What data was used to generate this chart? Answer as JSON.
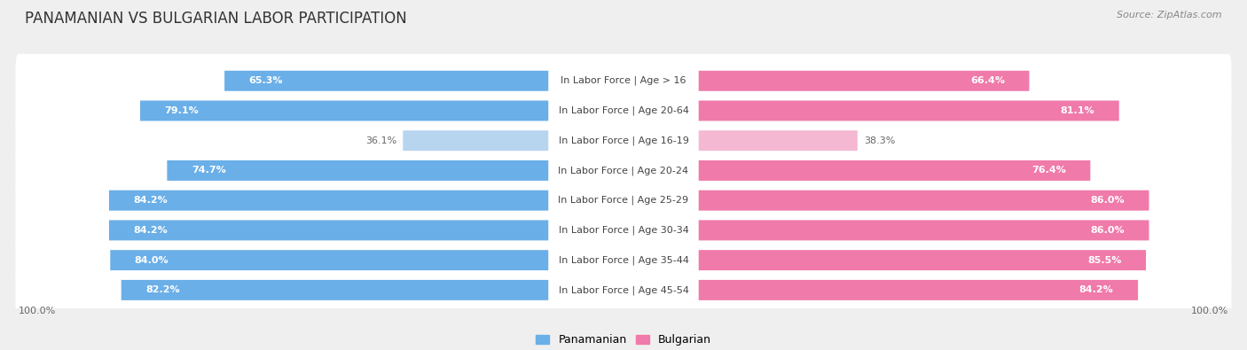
{
  "title": "PANAMANIAN VS BULGARIAN LABOR PARTICIPATION",
  "source": "Source: ZipAtlas.com",
  "categories": [
    "In Labor Force | Age > 16",
    "In Labor Force | Age 20-64",
    "In Labor Force | Age 16-19",
    "In Labor Force | Age 20-24",
    "In Labor Force | Age 25-29",
    "In Labor Force | Age 30-34",
    "In Labor Force | Age 35-44",
    "In Labor Force | Age 45-54"
  ],
  "panamanian": [
    65.3,
    79.1,
    36.1,
    74.7,
    84.2,
    84.2,
    84.0,
    82.2
  ],
  "bulgarian": [
    66.4,
    81.1,
    38.3,
    76.4,
    86.0,
    86.0,
    85.5,
    84.2
  ],
  "pan_color_strong": "#6aafe8",
  "pan_color_light": "#b8d5f0",
  "bul_color_strong": "#f07aaa",
  "bul_color_light": "#f5b8d2",
  "bg_color": "#efefef",
  "row_bg_color": "#ffffff",
  "title_fontsize": 12,
  "label_fontsize": 8,
  "bar_fontsize": 8,
  "legend_fontsize": 9,
  "source_fontsize": 8,
  "light_rows": [
    2
  ],
  "figsize": [
    14.06,
    3.95
  ]
}
